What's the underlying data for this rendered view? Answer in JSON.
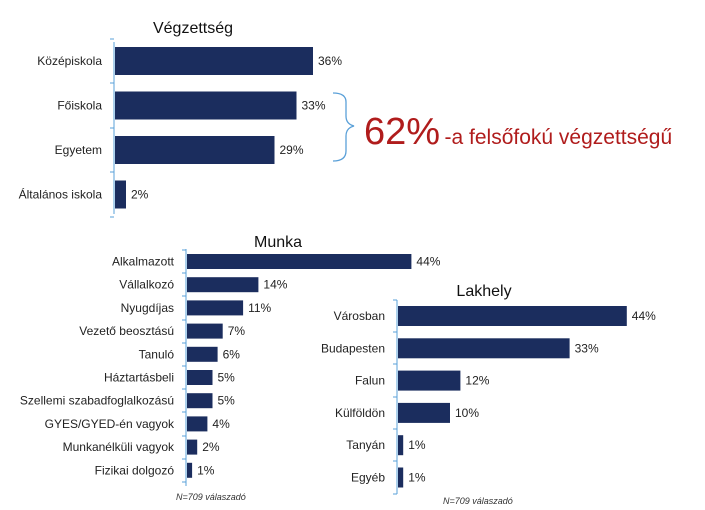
{
  "colors": {
    "bar": "#1b2d5e",
    "accent": "#b01c1c"
  },
  "callout": {
    "value": "62%",
    "text": "-a felsőfokú végzettségű"
  },
  "chart_data": [
    {
      "id": "education",
      "type": "bar",
      "orientation": "horizontal",
      "title": "Végzettség",
      "categories": [
        "Középiskola",
        "Főiskola",
        "Egyetem",
        "Általános iskola"
      ],
      "values": [
        36,
        33,
        29,
        2
      ],
      "value_labels": [
        "36%",
        "33%",
        "29%",
        "2%"
      ],
      "unit": "%"
    },
    {
      "id": "work",
      "type": "bar",
      "orientation": "horizontal",
      "title": "Munka",
      "categories": [
        "Alkalmazott",
        "Vállalkozó",
        "Nyugdíjas",
        "Vezető beosztású",
        "Tanuló",
        "Háztartásbeli",
        "Szellemi szabadfoglalkozású",
        "GYES/GYED-én vagyok",
        "Munkanélküli vagyok",
        "Fizikai dolgozó"
      ],
      "values": [
        44,
        14,
        11,
        7,
        6,
        5,
        5,
        4,
        2,
        1
      ],
      "value_labels": [
        "44%",
        "14%",
        "11%",
        "7%",
        "6%",
        "5%",
        "5%",
        "4%",
        "2%",
        "1%"
      ],
      "unit": "%",
      "note": "N=709 válaszadó"
    },
    {
      "id": "residence",
      "type": "bar",
      "orientation": "horizontal",
      "title": "Lakhely",
      "categories": [
        "Városban",
        "Budapesten",
        "Falun",
        "Külföldön",
        "Tanyán",
        "Egyéb"
      ],
      "values": [
        44,
        33,
        12,
        10,
        1,
        1
      ],
      "value_labels": [
        "44%",
        "33%",
        "12%",
        "10%",
        "1%",
        "1%"
      ],
      "unit": "%",
      "note": "N=709 válaszadó"
    }
  ]
}
